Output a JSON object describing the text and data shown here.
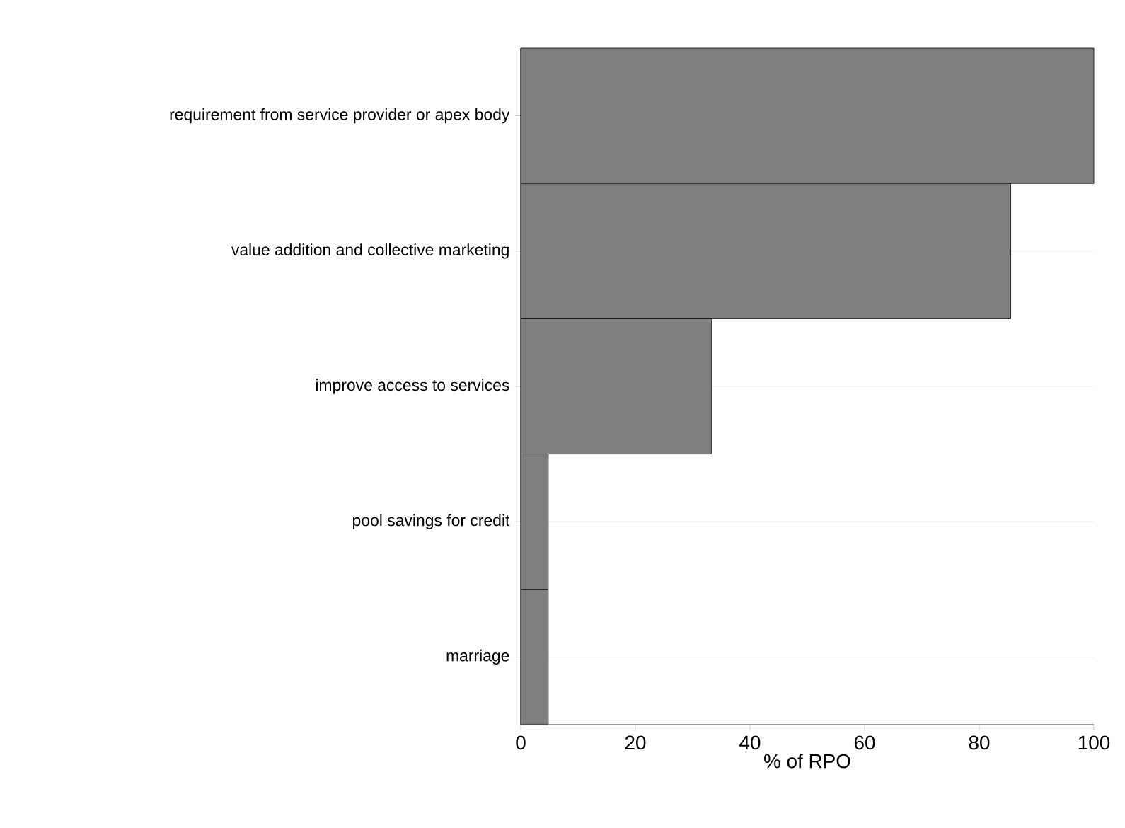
{
  "chart_data": {
    "type": "bar",
    "orientation": "horizontal",
    "xlabel": "% of RPO",
    "categories": [
      "requirement from service provider or apex body",
      "value addition and collective marketing",
      "improve access to services",
      "pool savings for credit",
      "marriage"
    ],
    "values": [
      100,
      85.5,
      33.3,
      4.8,
      4.8
    ],
    "color": "#7f7f7f",
    "xlim": [
      0,
      100
    ],
    "xticks": [
      0,
      20,
      40,
      60,
      80,
      100
    ],
    "grid": "y"
  }
}
